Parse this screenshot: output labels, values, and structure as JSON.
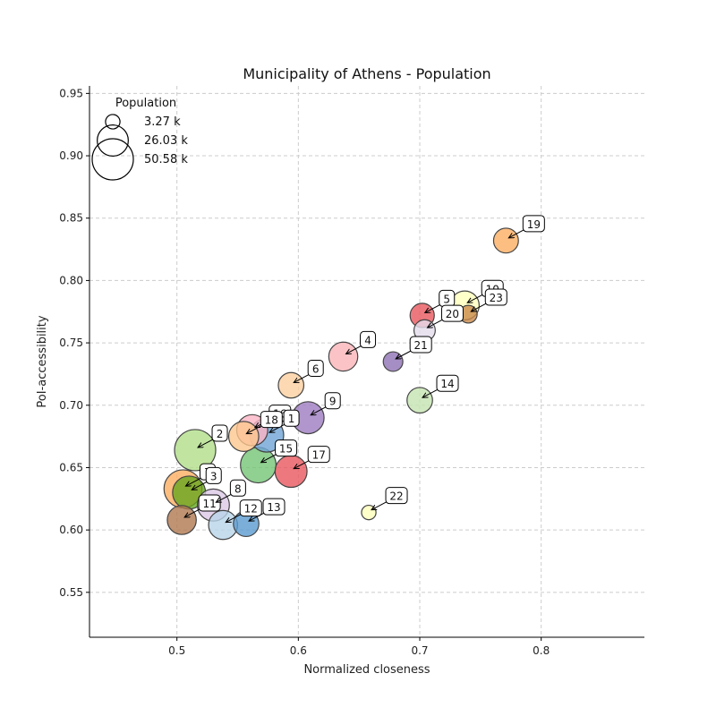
{
  "chart_data": {
    "type": "scatter",
    "title": "Municipality of Athens - Population",
    "xlabel": "Normalized closeness",
    "ylabel": "PoI-accessibility",
    "xlim": [
      0.428,
      0.885
    ],
    "ylim": [
      0.514,
      0.956
    ],
    "xticks": [
      0.5,
      0.6,
      0.7,
      0.8
    ],
    "xtick_labels": [
      "0.5",
      "0.6",
      "0.7",
      "0.8"
    ],
    "yticks": [
      0.55,
      0.6,
      0.65,
      0.7,
      0.75,
      0.8,
      0.85,
      0.9,
      0.95
    ],
    "ytick_labels": [
      "0.55",
      "0.60",
      "0.65",
      "0.70",
      "0.75",
      "0.80",
      "0.85",
      "0.90",
      "0.95"
    ],
    "grid": true,
    "legend": {
      "title": "Population",
      "placement": "top-left",
      "entries": [
        {
          "label": "3.27 k",
          "value": 3.27
        },
        {
          "label": "26.03 k",
          "value": 26.03
        },
        {
          "label": "50.58 k",
          "value": 50.58
        }
      ]
    },
    "points": [
      {
        "label": "2",
        "x": 0.515,
        "y": 0.664,
        "population": 50.58,
        "color": "#b2df8a"
      },
      {
        "label": "7",
        "x": 0.505,
        "y": 0.633,
        "population": 42.0,
        "color": "#fdae61"
      },
      {
        "label": "3",
        "x": 0.51,
        "y": 0.63,
        "population": 30.0,
        "color": "#66a61e"
      },
      {
        "label": "11",
        "x": 0.504,
        "y": 0.608,
        "population": 22.0,
        "color": "#b07850"
      },
      {
        "label": "8",
        "x": 0.53,
        "y": 0.62,
        "population": 28.0,
        "color": "#dcc8e6"
      },
      {
        "label": "12",
        "x": 0.538,
        "y": 0.604,
        "population": 22.0,
        "color": "#b8d4e8"
      },
      {
        "label": "13",
        "x": 0.557,
        "y": 0.605,
        "population": 16.0,
        "color": "#5a9bd0"
      },
      {
        "label": "16",
        "x": 0.562,
        "y": 0.68,
        "population": 26.0,
        "color": "#fbb4c4"
      },
      {
        "label": "1",
        "x": 0.574,
        "y": 0.676,
        "population": 32.0,
        "color": "#6fa4d4"
      },
      {
        "label": "18",
        "x": 0.555,
        "y": 0.675,
        "population": 24.0,
        "color": "#fdc78d"
      },
      {
        "label": "15",
        "x": 0.567,
        "y": 0.652,
        "population": 36.0,
        "color": "#74c476"
      },
      {
        "label": "17",
        "x": 0.594,
        "y": 0.647,
        "population": 28.0,
        "color": "#e8575e"
      },
      {
        "label": "9",
        "x": 0.608,
        "y": 0.69,
        "population": 28.0,
        "color": "#9e7cc0"
      },
      {
        "label": "6",
        "x": 0.594,
        "y": 0.716,
        "population": 16.0,
        "color": "#fdd0a0"
      },
      {
        "label": "4",
        "x": 0.637,
        "y": 0.739,
        "population": 22.0,
        "color": "#fbb4b8"
      },
      {
        "label": "21",
        "x": 0.678,
        "y": 0.735,
        "population": 8.0,
        "color": "#8e72b4"
      },
      {
        "label": "14",
        "x": 0.7,
        "y": 0.704,
        "population": 16.0,
        "color": "#c5e3b0"
      },
      {
        "label": "5",
        "x": 0.702,
        "y": 0.772,
        "population": 14.0,
        "color": "#e8575e"
      },
      {
        "label": "20",
        "x": 0.704,
        "y": 0.76,
        "population": 10.0,
        "color": "#e4dcec"
      },
      {
        "label": "10",
        "x": 0.737,
        "y": 0.78,
        "population": 22.0,
        "color": "#ffffbc"
      },
      {
        "label": "23",
        "x": 0.74,
        "y": 0.773,
        "population": 6.0,
        "color": "#c9894a"
      },
      {
        "label": "19",
        "x": 0.771,
        "y": 0.832,
        "population": 15.0,
        "color": "#fdae61"
      },
      {
        "label": "22",
        "x": 0.658,
        "y": 0.614,
        "population": 3.27,
        "color": "#ffffbc"
      }
    ]
  }
}
